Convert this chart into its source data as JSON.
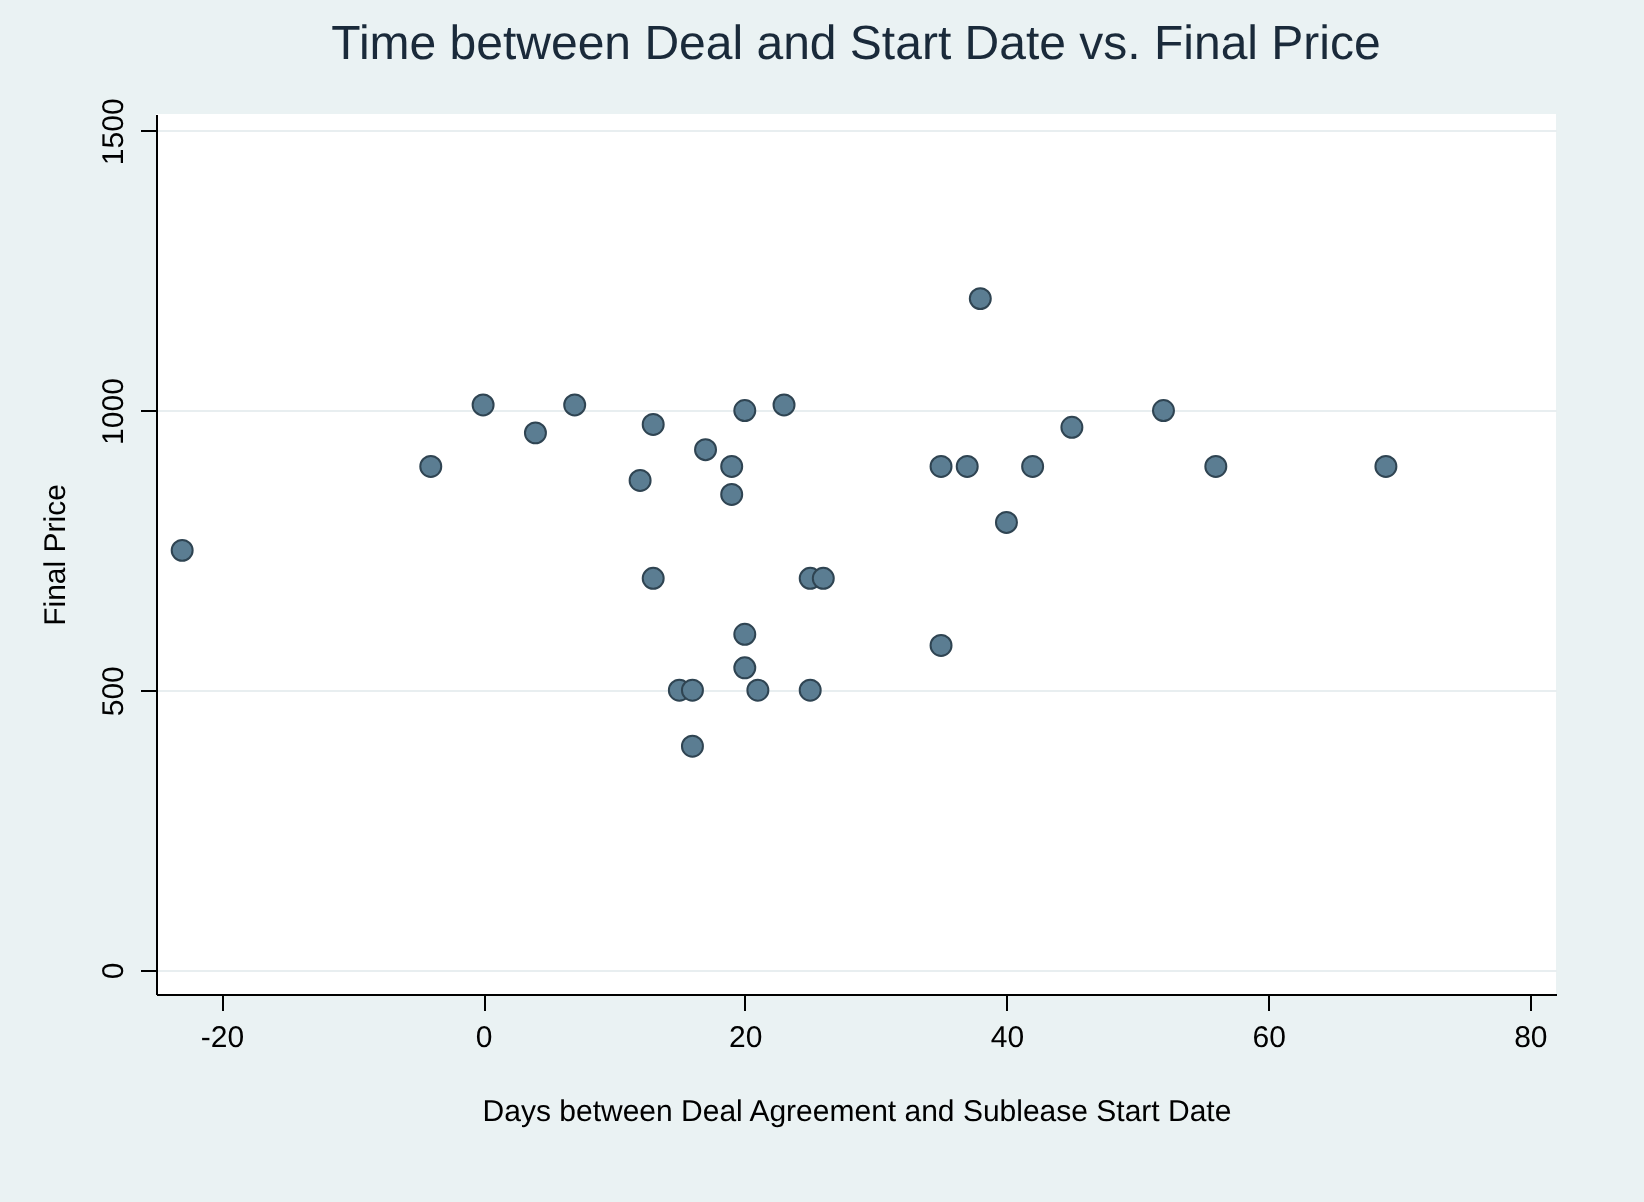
{
  "chart_data": {
    "type": "scatter",
    "title": "Time between Deal and Start Date vs. Final Price",
    "xlabel": "Days between Deal Agreement and Sublease Start Date",
    "ylabel": "Final Price",
    "x": [
      -23,
      -4,
      0,
      4,
      7,
      12,
      13,
      13,
      17,
      19,
      19,
      20,
      20,
      20,
      15,
      16,
      16,
      21,
      23,
      25,
      26,
      25,
      35,
      35,
      37,
      38,
      40,
      42,
      45,
      52,
      56,
      69
    ],
    "series": [
      {
        "color": "#5b7d92",
        "values": [
          750,
          900,
          1010,
          960,
          1010,
          875,
          975,
          700,
          930,
          900,
          850,
          1000,
          600,
          540,
          500,
          500,
          400,
          500,
          1010,
          700,
          700,
          500,
          900,
          580,
          900,
          1200,
          800,
          900,
          970,
          1000,
          900,
          900
        ]
      }
    ],
    "xlim": [
      -25,
      82
    ],
    "ylim": [
      -43,
      1530
    ],
    "xticks": [
      -20,
      0,
      20,
      40,
      60,
      80
    ],
    "yticks": [
      0,
      500,
      1000,
      1500
    ],
    "grid": "y",
    "marker": "circle"
  }
}
